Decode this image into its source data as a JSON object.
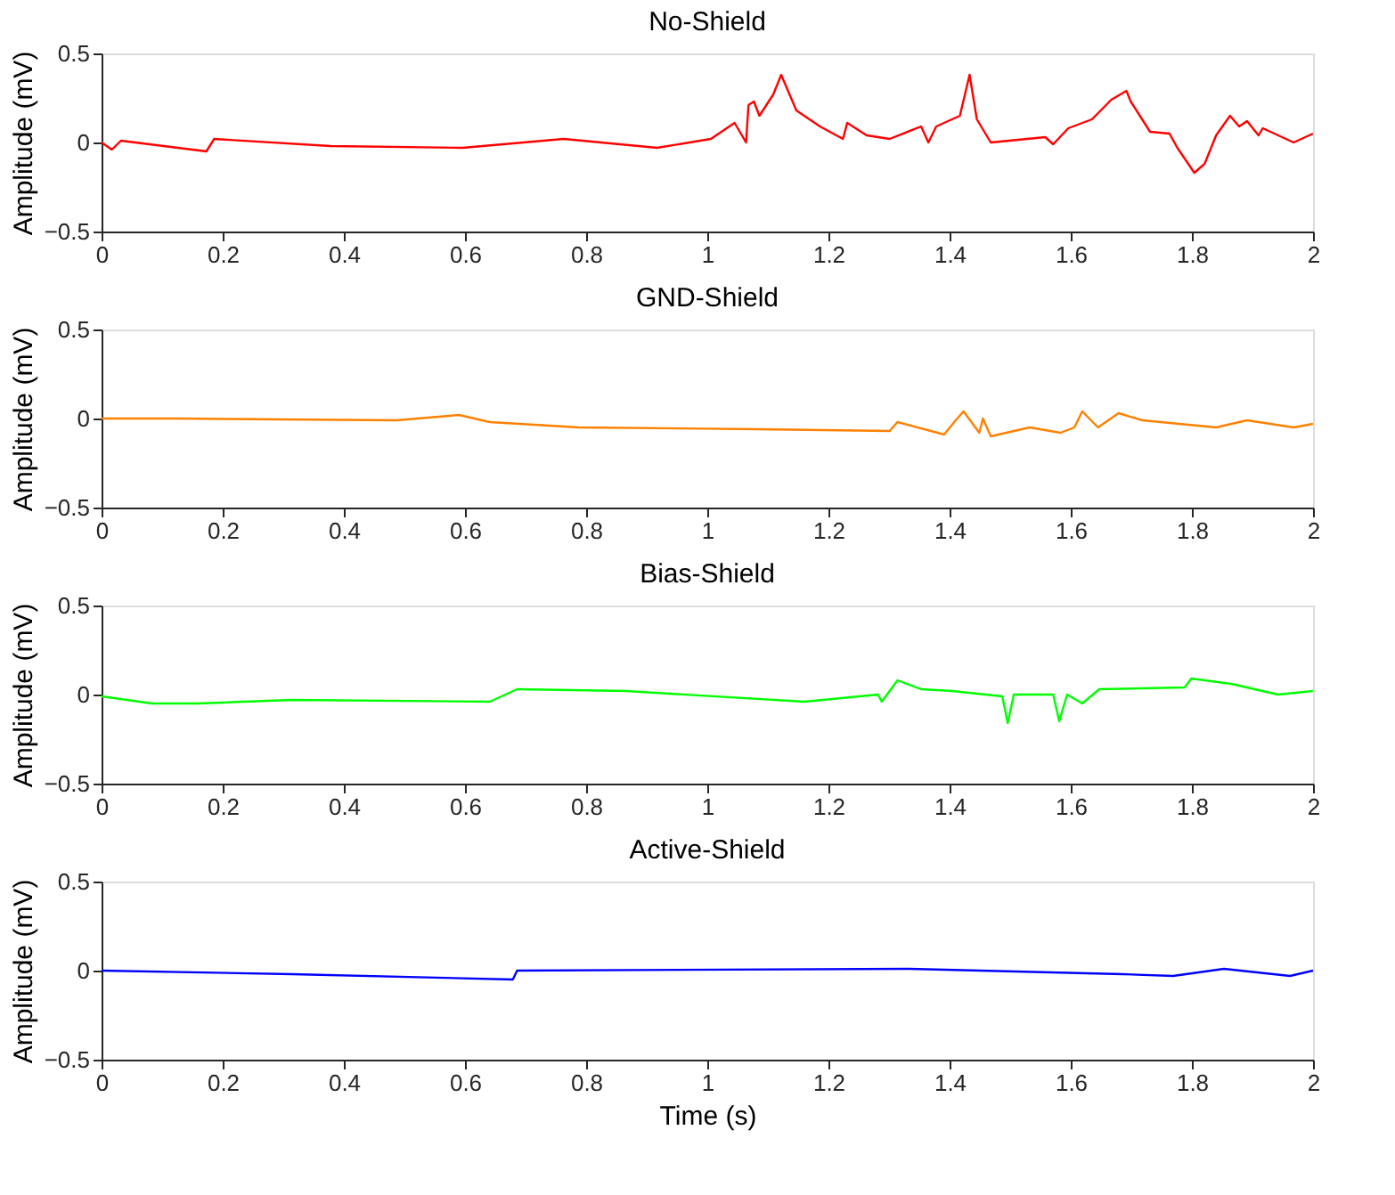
{
  "chart_data": [
    {
      "type": "line",
      "title": "No-Shield",
      "ylabel": "Amplitude (mV)",
      "xlim": [
        0,
        2
      ],
      "xticks": [
        0,
        0.2,
        0.4,
        0.6,
        0.8,
        1,
        1.2,
        1.4,
        1.6,
        1.8,
        2
      ],
      "ylim": [
        -0.5,
        0.5
      ],
      "yticks": [
        -0.5,
        0,
        0.5
      ],
      "grid": false,
      "x": [
        0,
        0.017,
        0.032,
        0.173,
        0.186,
        0.378,
        0.596,
        0.763,
        0.917,
        1.006,
        1.019,
        1.045,
        1.064,
        1.068,
        1.077,
        1.086,
        1.109,
        1.122,
        1.147,
        1.186,
        1.224,
        1.231,
        1.263,
        1.301,
        1.353,
        1.365,
        1.378,
        1.417,
        1.433,
        1.445,
        1.468,
        1.558,
        1.571,
        1.596,
        1.635,
        1.667,
        1.692,
        1.699,
        1.731,
        1.763,
        1.776,
        1.804,
        1.821,
        1.84,
        1.863,
        1.878,
        1.891,
        1.91,
        1.917,
        1.968,
        2.0
      ],
      "series": [
        {
          "color": "#ff0000",
          "values": [
            0,
            -0.04,
            0.01,
            -0.05,
            0.02,
            -0.02,
            -0.03,
            0.02,
            -0.03,
            0.02,
            0.05,
            0.11,
            0.0,
            0.21,
            0.23,
            0.15,
            0.27,
            0.38,
            0.18,
            0.09,
            0.02,
            0.11,
            0.04,
            0.02,
            0.09,
            0.0,
            0.09,
            0.15,
            0.38,
            0.13,
            0.0,
            0.03,
            -0.01,
            0.08,
            0.13,
            0.24,
            0.29,
            0.23,
            0.06,
            0.05,
            -0.03,
            -0.17,
            -0.12,
            0.04,
            0.15,
            0.09,
            0.12,
            0.04,
            0.08,
            0.0,
            0.05
          ]
        }
      ]
    },
    {
      "type": "line",
      "title": "GND-Shield",
      "ylabel": "Amplitude (mV)",
      "xlim": [
        0,
        2
      ],
      "xticks": [
        0,
        0.2,
        0.4,
        0.6,
        0.8,
        1,
        1.2,
        1.4,
        1.6,
        1.8,
        2
      ],
      "ylim": [
        -0.5,
        0.5
      ],
      "yticks": [
        -0.5,
        0,
        0.5
      ],
      "grid": false,
      "x": [
        0,
        0.122,
        0.487,
        0.59,
        0.641,
        0.788,
        1.083,
        1.301,
        1.314,
        1.391,
        1.41,
        1.423,
        1.449,
        1.455,
        1.468,
        1.532,
        1.583,
        1.606,
        1.619,
        1.645,
        1.679,
        1.718,
        1.84,
        1.891,
        1.968,
        2.0
      ],
      "series": [
        {
          "color": "#ff8000",
          "values": [
            0,
            0,
            -0.01,
            0.02,
            -0.02,
            -0.05,
            -0.06,
            -0.07,
            -0.02,
            -0.09,
            -0.01,
            0.04,
            -0.08,
            0.0,
            -0.1,
            -0.05,
            -0.08,
            -0.05,
            0.04,
            -0.05,
            0.03,
            -0.01,
            -0.05,
            -0.01,
            -0.05,
            -0.03
          ]
        }
      ]
    },
    {
      "type": "line",
      "title": "Bias-Shield",
      "ylabel": "Amplitude (mV)",
      "xlim": [
        0,
        2
      ],
      "xticks": [
        0,
        0.2,
        0.4,
        0.6,
        0.8,
        1,
        1.2,
        1.4,
        1.6,
        1.8,
        2
      ],
      "ylim": [
        -0.5,
        0.5
      ],
      "yticks": [
        -0.5,
        0,
        0.5
      ],
      "grid": false,
      "x": [
        0,
        0.083,
        0.16,
        0.314,
        0.641,
        0.686,
        0.865,
        1.16,
        1.282,
        1.288,
        1.314,
        1.353,
        1.404,
        1.487,
        1.496,
        1.506,
        1.571,
        1.581,
        1.594,
        1.619,
        1.647,
        1.788,
        1.799,
        1.865,
        1.942,
        2.0
      ],
      "series": [
        {
          "color": "#00ff00",
          "values": [
            -0.01,
            -0.05,
            -0.05,
            -0.03,
            -0.04,
            0.03,
            0.02,
            -0.04,
            0.0,
            -0.04,
            0.08,
            0.03,
            0.02,
            -0.01,
            -0.16,
            0.0,
            0.0,
            -0.15,
            0.0,
            -0.05,
            0.03,
            0.04,
            0.09,
            0.06,
            0.0,
            0.02
          ]
        }
      ]
    },
    {
      "type": "line",
      "title": "Active-Shield",
      "ylabel": "Amplitude (mV)",
      "xlabel": "Time (s)",
      "xlim": [
        0,
        2
      ],
      "xticks": [
        0,
        0.2,
        0.4,
        0.6,
        0.8,
        1,
        1.2,
        1.4,
        1.6,
        1.8,
        2
      ],
      "ylim": [
        -0.5,
        0.5
      ],
      "yticks": [
        -0.5,
        0,
        0.5
      ],
      "grid": false,
      "x": [
        0,
        0.314,
        0.679,
        0.686,
        1.333,
        1.686,
        1.769,
        1.853,
        1.962,
        2.0
      ],
      "series": [
        {
          "color": "#0000ff",
          "values": [
            0,
            -0.02,
            -0.05,
            0.0,
            0.01,
            -0.02,
            -0.03,
            0.01,
            -0.03,
            0.0
          ]
        }
      ]
    }
  ]
}
